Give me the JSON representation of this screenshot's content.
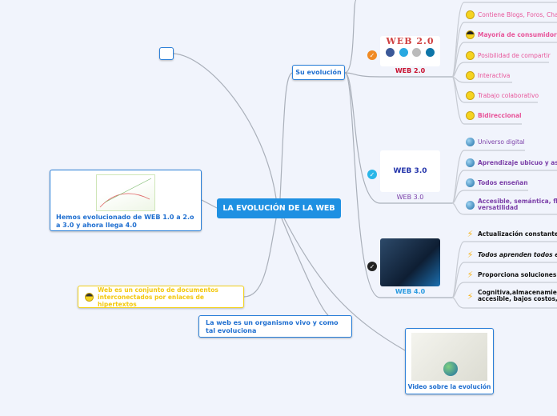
{
  "central": {
    "title": "LA EVOLUCIÓN DE LA WEB"
  },
  "evolution": {
    "label": "Su evolución"
  },
  "left_topic": {
    "text": "Hemos evolucionado de WEB 1.0 a 2.o a 3.0 y ahora llega 4.0"
  },
  "definition": {
    "text": "Web es un conjunto de documentos interconectados por enlaces de hipertextos",
    "icon": "cool-smiley-icon"
  },
  "organism": {
    "text": "La web es un organismo vivo y como tal evoluciona"
  },
  "video": {
    "label": "Video sobre la evolución"
  },
  "web2": {
    "label": "WEB 2.0",
    "image_text": "WEB 2.0",
    "color": "#c8102e",
    "items": [
      {
        "text": "Contiene Blogs, Foros, Chat",
        "icon": "smiley-icon",
        "bold": false
      },
      {
        "text": "Mayoría de consumidores",
        "icon": "sunglasses-smiley-icon",
        "bold": true
      },
      {
        "text": "Posibilidad de compartir",
        "icon": "smiley-icon",
        "bold": false
      },
      {
        "text": "Interactiva",
        "icon": "surprised-smiley-icon",
        "bold": false
      },
      {
        "text": "Trabajo colaborativo",
        "icon": "smiley-icon",
        "bold": false
      },
      {
        "text": "Bidireccional",
        "icon": "smiley-icon",
        "bold": true
      }
    ]
  },
  "web3": {
    "label": "WEB 3.0",
    "image_text": "WEB 3.0",
    "color": "#7b3fa8",
    "items": [
      {
        "text": "Universo digital",
        "bold": false
      },
      {
        "text": "Aprendizaje ubicuo y asín",
        "bold": true
      },
      {
        "text": "Todos enseñan",
        "bold": true
      },
      {
        "text": "Accesible, semántica, flex",
        "text2": "versatilidad",
        "bold": true
      }
    ]
  },
  "web4": {
    "label": "WEB 4.0",
    "color": "#2b9be0",
    "items": [
      {
        "text": "Actualización constante",
        "bold": true,
        "italic": false
      },
      {
        "text": "Todos aprenden todos en",
        "bold": true,
        "italic": true
      },
      {
        "text": "Proporciona soluciones",
        "bold": true,
        "italic": false
      },
      {
        "text": "Cognitiva,almacenamient",
        "text2": "accesible, bajos costos, p",
        "bold": true,
        "italic": false
      }
    ]
  }
}
